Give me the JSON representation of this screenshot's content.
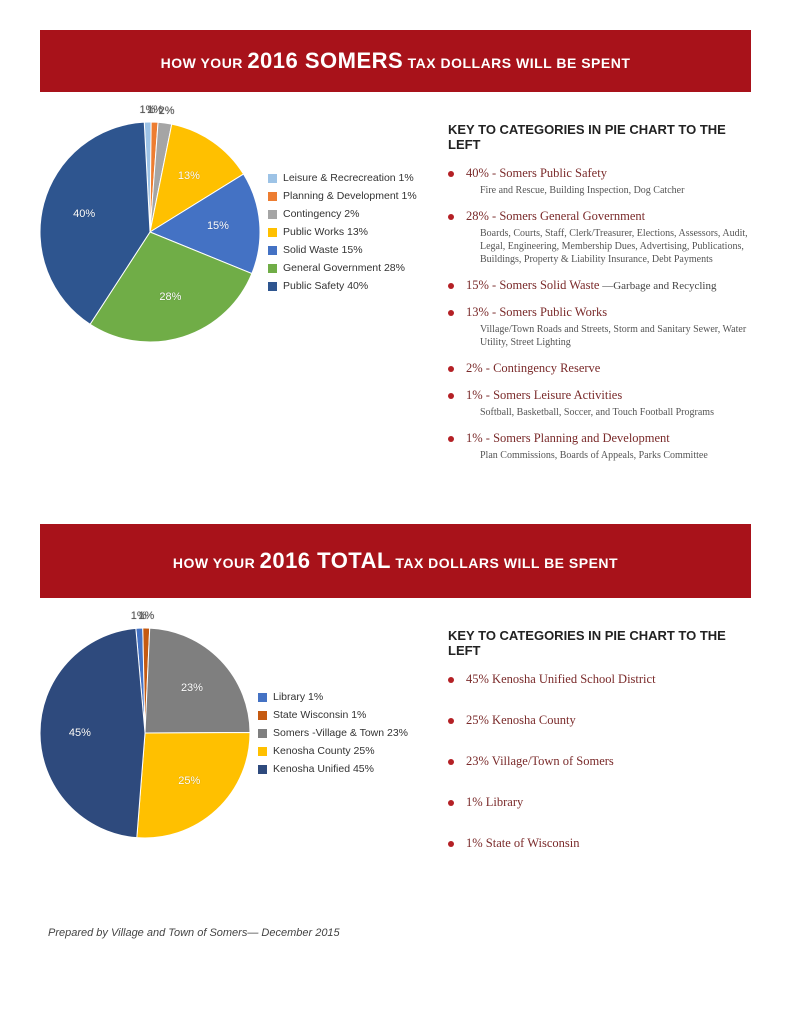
{
  "colors": {
    "banner_bg": "#a8121a",
    "bullet": "#b42025",
    "cat_head": "#7a2a2a",
    "text_dark": "#222222"
  },
  "section1": {
    "banner": {
      "lead": "HOW YOUR ",
      "big": "2016 SOMERS",
      "tail": " TAX DOLLARS WILL BE SPENT"
    },
    "chart": {
      "type": "pie",
      "size": 220,
      "background_color": "#ffffff",
      "slices": [
        {
          "label": "Leisure & Recrecreation 1%",
          "short": "1%",
          "value": 1,
          "color": "#9dc3e6"
        },
        {
          "label": "Planning & Development 1%",
          "short": "1%",
          "value": 1,
          "color": "#ed7d31"
        },
        {
          "label": "Contingency 2%",
          "short": "2%",
          "value": 2,
          "color": "#a5a5a5"
        },
        {
          "label": "Public Works 13%",
          "short": "13%",
          "value": 13,
          "color": "#ffc000"
        },
        {
          "label": "Solid Waste 15%",
          "short": "15%",
          "value": 15,
          "color": "#4472c4"
        },
        {
          "label": "General Government 28%",
          "short": "28%",
          "value": 28,
          "color": "#70ad47"
        },
        {
          "label": "Public Safety 40%",
          "short": "40%",
          "value": 40,
          "color": "#2e558f"
        }
      ],
      "start_angle": -93,
      "label_fontsize": 11
    },
    "key_title": "KEY TO CATEGORIES IN PIE CHART TO THE LEFT",
    "categories": [
      {
        "head": "40% - Somers Public Safety",
        "sub": "Fire and Rescue, Building Inspection, Dog Catcher"
      },
      {
        "head": "28% - Somers General Government",
        "sub": "Boards, Courts, Staff, Clerk/Treasurer, Elections, Assessors, Audit, Legal, Engineering, Membership Dues, Advertising, Publications, Buildings, Property & Liability Insurance, Debt Payments"
      },
      {
        "head": "15% - Somers Solid Waste",
        "sub_inline": " —Garbage and Recycling"
      },
      {
        "head": "13% - Somers Public Works",
        "sub": "Village/Town Roads and Streets, Storm and Sanitary Sewer, Water Utility, Street Lighting"
      },
      {
        "head": "2% - Contingency Reserve"
      },
      {
        "head": "1% - Somers Leisure Activities",
        "sub": "Softball, Basketball, Soccer, and Touch Football Programs"
      },
      {
        "head": "1% - Somers Planning and Development",
        "sub": "Plan Commissions, Boards of Appeals, Parks Committee"
      }
    ]
  },
  "section2": {
    "banner": {
      "lead": "HOW YOUR  ",
      "big": "2016 TOTAL",
      "tail": " TAX DOLLARS  WILL BE SPENT"
    },
    "chart": {
      "type": "pie",
      "size": 210,
      "background_color": "#ffffff",
      "slices": [
        {
          "label": "Library 1%",
          "short": "1%",
          "value": 1,
          "color": "#4472c4"
        },
        {
          "label": "State Wisconsin 1%",
          "short": "1%",
          "value": 1,
          "color": "#c55a11"
        },
        {
          "label": "Somers -Village & Town 23%",
          "short": "23%",
          "value": 23,
          "color": "#7f7f7f"
        },
        {
          "label": "Kenosha County 25%",
          "short": "25%",
          "value": 25,
          "color": "#ffc000"
        },
        {
          "label": "Kenosha Unified 45%",
          "short": "45%",
          "value": 45,
          "color": "#2e4a7d"
        }
      ],
      "start_angle": -95,
      "label_fontsize": 11
    },
    "key_title": "KEY TO CATEGORIES IN PIE CHART TO THE LEFT",
    "categories": [
      {
        "head": " 45% Kenosha Unified School District"
      },
      {
        "head": " 25%  Kenosha County"
      },
      {
        "head": " 23% Village/Town of Somers"
      },
      {
        "head": " 1% Library"
      },
      {
        "head": " 1% State of Wisconsin"
      }
    ]
  },
  "footer": "Prepared by Village and Town of Somers— December 2015"
}
